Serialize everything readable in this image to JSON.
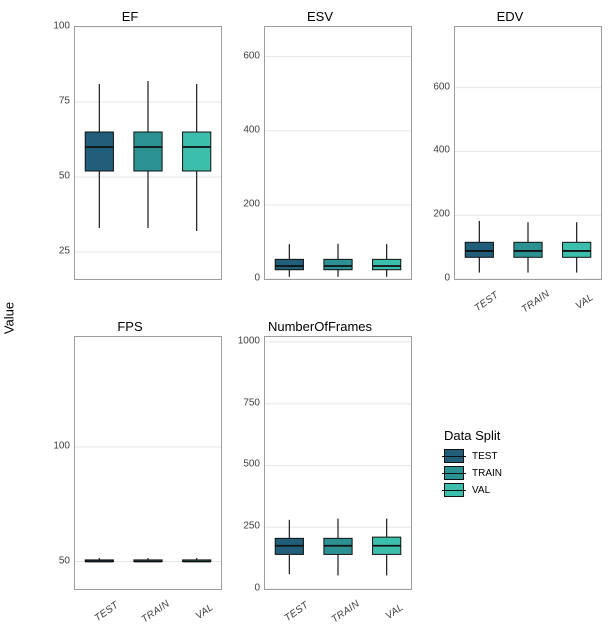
{
  "ylabel": "Value",
  "categories": [
    "TEST",
    "TRAIN",
    "VAL"
  ],
  "colors": {
    "TEST": "#205e79",
    "TRAIN": "#2c9193",
    "VAL": "#3bbeac"
  },
  "panel_bg": "#ffffff",
  "panel_border": "#9e9e9e",
  "grid_color": "#e6e6e6",
  "tick_fontsize": 10,
  "title_fontsize": 13,
  "box_rel_width": 0.58,
  "legend": {
    "title": "Data Split",
    "items": [
      "TEST",
      "TRAIN",
      "VAL"
    ]
  },
  "panels": [
    {
      "title": "EF",
      "ylim": [
        16,
        100
      ],
      "yticks": [
        25,
        50,
        75,
        100
      ],
      "show_x": false,
      "data": [
        {
          "cat": "TEST",
          "min": 33,
          "q1": 52,
          "med": 60,
          "q3": 65,
          "max": 81
        },
        {
          "cat": "TRAIN",
          "min": 33,
          "q1": 52,
          "med": 60,
          "q3": 65,
          "max": 82
        },
        {
          "cat": "VAL",
          "min": 32,
          "q1": 52,
          "med": 60,
          "q3": 65,
          "max": 81
        }
      ]
    },
    {
      "title": "ESV",
      "ylim": [
        0,
        680
      ],
      "yticks": [
        0,
        200,
        400,
        600
      ],
      "show_x": false,
      "data": [
        {
          "cat": "TEST",
          "min": 6,
          "q1": 25,
          "med": 35,
          "q3": 53,
          "max": 94
        },
        {
          "cat": "TRAIN",
          "min": 6,
          "q1": 25,
          "med": 35,
          "q3": 53,
          "max": 95
        },
        {
          "cat": "VAL",
          "min": 6,
          "q1": 25,
          "med": 35,
          "q3": 53,
          "max": 94
        }
      ]
    },
    {
      "title": "EDV",
      "ylim": [
        0,
        790
      ],
      "yticks": [
        0,
        200,
        400,
        600
      ],
      "show_x": true,
      "data": [
        {
          "cat": "TEST",
          "min": 20,
          "q1": 68,
          "med": 88,
          "q3": 115,
          "max": 182
        },
        {
          "cat": "TRAIN",
          "min": 20,
          "q1": 68,
          "med": 88,
          "q3": 115,
          "max": 178
        },
        {
          "cat": "VAL",
          "min": 20,
          "q1": 68,
          "med": 88,
          "q3": 115,
          "max": 178
        }
      ]
    },
    {
      "title": "FPS",
      "ylim": [
        38,
        148
      ],
      "yticks": [
        50,
        100
      ],
      "show_x": true,
      "data": [
        {
          "cat": "TEST",
          "min": 50,
          "q1": 50,
          "med": 50,
          "q3": 50.7,
          "max": 51.5
        },
        {
          "cat": "TRAIN",
          "min": 50,
          "q1": 50,
          "med": 50,
          "q3": 50.7,
          "max": 51.5
        },
        {
          "cat": "VAL",
          "min": 50,
          "q1": 50,
          "med": 50,
          "q3": 50.7,
          "max": 51.5
        }
      ]
    },
    {
      "title": "NumberOfFrames",
      "ylim": [
        0,
        1020
      ],
      "yticks": [
        0,
        250,
        500,
        750,
        1000
      ],
      "show_x": true,
      "data": [
        {
          "cat": "TEST",
          "min": 60,
          "q1": 140,
          "med": 175,
          "q3": 205,
          "max": 280
        },
        {
          "cat": "TRAIN",
          "min": 55,
          "q1": 140,
          "med": 175,
          "q3": 205,
          "max": 285
        },
        {
          "cat": "VAL",
          "min": 55,
          "q1": 140,
          "med": 175,
          "q3": 210,
          "max": 285
        }
      ]
    }
  ]
}
